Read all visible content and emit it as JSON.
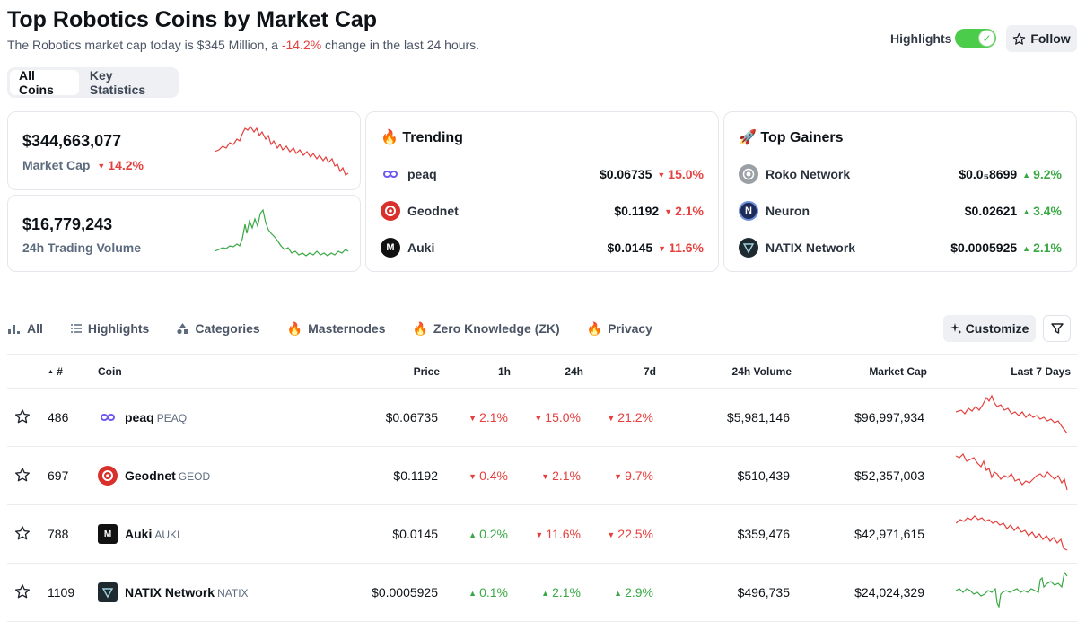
{
  "header": {
    "title": "Top Robotics Coins by Market Cap",
    "subtitle_pre": "The Robotics market cap today is $345 Million, a ",
    "subtitle_change": "-14.2%",
    "subtitle_post": " change in the last 24 hours.",
    "highlights_label": "Highlights",
    "highlights_on": true,
    "follow_label": "Follow"
  },
  "top_tabs": [
    {
      "label": "All Coins",
      "active": true
    },
    {
      "label": "Key Statistics",
      "active": false
    }
  ],
  "stats": {
    "market_cap": {
      "value": "$344,663,077",
      "label": "Market Cap",
      "change": "14.2%",
      "direction": "down"
    },
    "volume": {
      "value": "$16,779,243",
      "label": "24h Trading Volume"
    }
  },
  "trending": {
    "title": "Trending",
    "icon": "fire-icon",
    "items": [
      {
        "name": "peaq",
        "price": "$0.06735",
        "change": "15.0%",
        "direction": "down",
        "logo": "peaq-logo",
        "color": "#ffffff"
      },
      {
        "name": "Geodnet",
        "price": "$0.1192",
        "change": "2.1%",
        "direction": "down",
        "logo": "geodnet-logo",
        "color": "#d9302c"
      },
      {
        "name": "Auki",
        "price": "$0.0145",
        "change": "11.6%",
        "direction": "down",
        "logo": "auki-logo",
        "color": "#111111"
      }
    ]
  },
  "top_gainers": {
    "title": "Top Gainers",
    "icon": "rocket-icon",
    "items": [
      {
        "name": "Roko Network",
        "price": "$0.0₅8699",
        "change": "9.2%",
        "direction": "up",
        "logo": "roko-logo",
        "color": "#9aa0a6"
      },
      {
        "name": "Neuron",
        "price": "$0.02621",
        "change": "3.4%",
        "direction": "up",
        "logo": "neuron-logo",
        "color": "#1c2b5a"
      },
      {
        "name": "NATIX Network",
        "price": "$0.0005925",
        "change": "2.1%",
        "direction": "up",
        "logo": "natix-logo",
        "color": "#1f2a30"
      }
    ]
  },
  "categories": [
    {
      "label": "All",
      "icon": "chart-bar-icon"
    },
    {
      "label": "Highlights",
      "icon": "list-icon"
    },
    {
      "label": "Categories",
      "icon": "shapes-icon"
    },
    {
      "label": "Masternodes",
      "icon": "fire-icon"
    },
    {
      "label": "Zero Knowledge (ZK)",
      "icon": "fire-icon"
    },
    {
      "label": "Privacy",
      "icon": "fire-icon"
    }
  ],
  "customize_label": "Customize",
  "table": {
    "columns": {
      "rank": "#",
      "coin": "Coin",
      "price": "Price",
      "h1": "1h",
      "h24": "24h",
      "d7": "7d",
      "volume": "24h Volume",
      "market_cap": "Market Cap",
      "last7": "Last 7 Days"
    },
    "rows": [
      {
        "rank": "486",
        "name": "peaq",
        "symbol": "PEAQ",
        "price": "$0.06735",
        "h1": "2.1%",
        "h1_dir": "down",
        "h24": "15.0%",
        "h24_dir": "down",
        "d7": "21.2%",
        "d7_dir": "down",
        "volume": "$5,981,146",
        "market_cap": "$96,997,934",
        "logo": "peaq-logo",
        "spark_color": "#e5403d"
      },
      {
        "rank": "697",
        "name": "Geodnet",
        "symbol": "GEOD",
        "price": "$0.1192",
        "h1": "0.4%",
        "h1_dir": "down",
        "h24": "2.1%",
        "h24_dir": "down",
        "d7": "9.7%",
        "d7_dir": "down",
        "volume": "$510,439",
        "market_cap": "$52,357,003",
        "logo": "geodnet-logo",
        "spark_color": "#e5403d"
      },
      {
        "rank": "788",
        "name": "Auki",
        "symbol": "AUKI",
        "price": "$0.0145",
        "h1": "0.2%",
        "h1_dir": "up",
        "h24": "11.6%",
        "h24_dir": "down",
        "d7": "22.5%",
        "d7_dir": "down",
        "volume": "$359,476",
        "market_cap": "$42,971,615",
        "logo": "auki-logo",
        "spark_color": "#e5403d"
      },
      {
        "rank": "1109",
        "name": "NATIX Network",
        "symbol": "NATIX",
        "price": "$0.0005925",
        "h1": "0.1%",
        "h1_dir": "up",
        "h24": "2.1%",
        "h24_dir": "up",
        "d7": "2.9%",
        "d7_dir": "up",
        "volume": "$496,735",
        "market_cap": "$24,024,329",
        "logo": "natix-logo",
        "spark_color": "#3aa845"
      }
    ]
  }
}
